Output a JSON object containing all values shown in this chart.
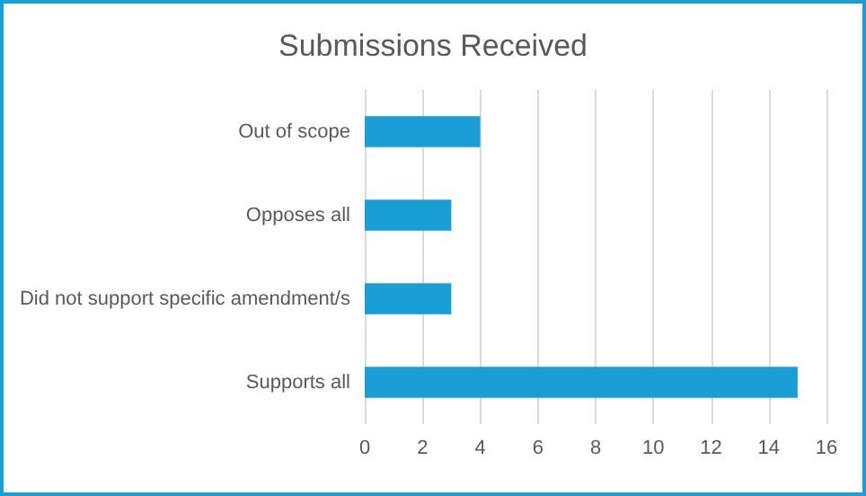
{
  "chart_data": {
    "type": "bar",
    "title": "Submissions Received",
    "orientation": "horizontal",
    "categories": [
      "Out of scope",
      "Opposes all",
      "Did not support specific amendment/s",
      "Supports all"
    ],
    "values": [
      4,
      3,
      3,
      15
    ],
    "color": "#1a9ed6",
    "xlim": [
      0,
      16
    ],
    "xticks": [
      0,
      2,
      4,
      6,
      8,
      10,
      12,
      14,
      16
    ],
    "grid": "x"
  }
}
